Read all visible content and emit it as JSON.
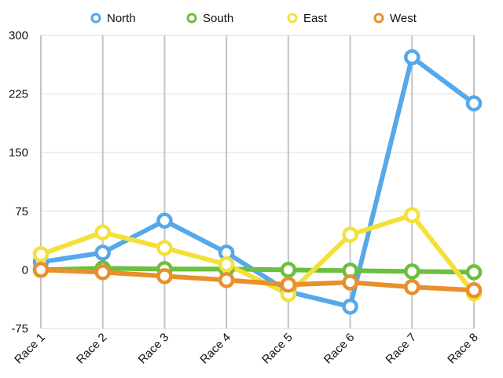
{
  "chart_data": {
    "type": "line",
    "title": "",
    "xlabel": "",
    "ylabel": "",
    "categories": [
      "Race 1",
      "Race 2",
      "Race 3",
      "Race 4",
      "Race 5",
      "Race 6",
      "Race 7",
      "Race 8"
    ],
    "ylim": [
      -75,
      300
    ],
    "yticks": [
      -75,
      0,
      75,
      150,
      225,
      300
    ],
    "ytick_labels": [
      "-75",
      "0",
      "75",
      "150",
      "225",
      "300"
    ],
    "grid": true,
    "legend_position": "top",
    "series": [
      {
        "name": "North",
        "color": "#55a8ea",
        "values": [
          10,
          22,
          63,
          22,
          -28,
          -47,
          272,
          213
        ]
      },
      {
        "name": "South",
        "color": "#6cbf3f",
        "values": [
          0,
          2,
          1,
          1,
          0,
          -1,
          -2,
          -3
        ]
      },
      {
        "name": "East",
        "color": "#f4e03a",
        "values": [
          20,
          48,
          28,
          7,
          -31,
          45,
          70,
          -30
        ]
      },
      {
        "name": "West",
        "color": "#e8902b",
        "values": [
          0,
          -3,
          -8,
          -13,
          -19,
          -16,
          -22,
          -26
        ]
      }
    ]
  }
}
